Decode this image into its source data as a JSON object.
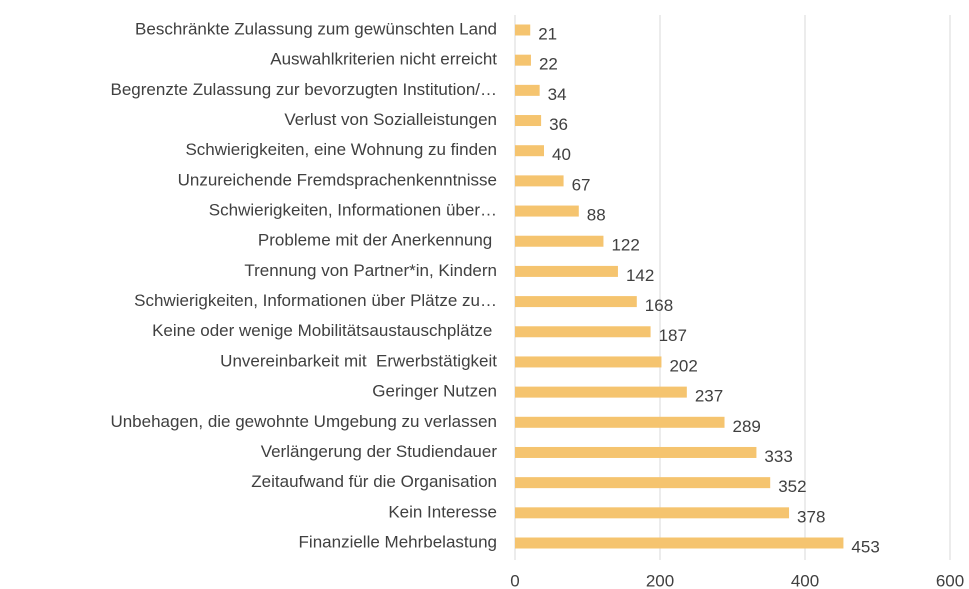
{
  "chart_data": {
    "type": "barh",
    "categories": [
      "Beschränkte Zulassung zum gewünschten Land",
      "Auswahlkriterien nicht erreicht",
      "Begrenzte Zulassung zur bevorzugten Institution/…",
      "Verlust von Sozialleistungen",
      "Schwierigkeiten, eine Wohnung zu finden",
      "Unzureichende Fremdsprachenkenntnisse",
      "Schwierigkeiten, Informationen über…",
      "Probleme mit der Anerkennung ",
      "Trennung von Partner*in, Kindern",
      "Schwierigkeiten, Informationen über Plätze zu…",
      "Keine oder wenige Mobilitätsaustauschplätze ",
      "Unvereinbarkeit mit  Erwerbstätigkeit",
      "Geringer Nutzen",
      "Unbehagen, die gewohnte Umgebung zu verlassen",
      "Verlängerung der Studiendauer",
      "Zeitaufwand für die Organisation",
      "Kein Interesse",
      "Finanzielle Mehrbelastung"
    ],
    "values": [
      21,
      22,
      34,
      36,
      40,
      67,
      88,
      122,
      142,
      168,
      187,
      202,
      237,
      289,
      333,
      352,
      378,
      453
    ],
    "color": "#f5c46f",
    "xlim": [
      0,
      600
    ],
    "xticks": [
      0,
      200,
      400,
      600
    ],
    "grid": true
  }
}
